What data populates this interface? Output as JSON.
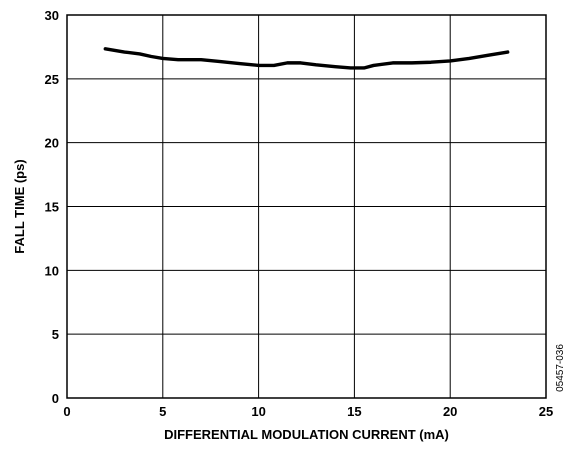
{
  "chart_data": {
    "type": "line",
    "xlabel": "DIFFERENTIAL MODULATION CURRENT (mA)",
    "ylabel": "FALL TIME (ps)",
    "xlim": [
      0,
      25
    ],
    "ylim": [
      0,
      30
    ],
    "xticks": [
      "0",
      "5",
      "10",
      "15",
      "20",
      "25"
    ],
    "yticks": [
      "0",
      "5",
      "10",
      "15",
      "20",
      "25",
      "30"
    ],
    "grid": true,
    "figure_id": "05457-036",
    "colors": {
      "line": "#000000",
      "grid": "#000000"
    },
    "series": [
      {
        "x": [
          2,
          3,
          3.8,
          4.4,
          5,
          5.8,
          7,
          8,
          9,
          10,
          10.8,
          11.5,
          12.2,
          13,
          14,
          14.8,
          15.5,
          16,
          17,
          18,
          19,
          20,
          21,
          22,
          23
        ],
        "y": [
          27.35,
          27.1,
          26.95,
          26.75,
          26.6,
          26.5,
          26.5,
          26.35,
          26.2,
          26.05,
          26.05,
          26.25,
          26.25,
          26.1,
          25.95,
          25.85,
          25.85,
          26.05,
          26.25,
          26.25,
          26.3,
          26.4,
          26.6,
          26.85,
          27.1
        ]
      }
    ]
  }
}
